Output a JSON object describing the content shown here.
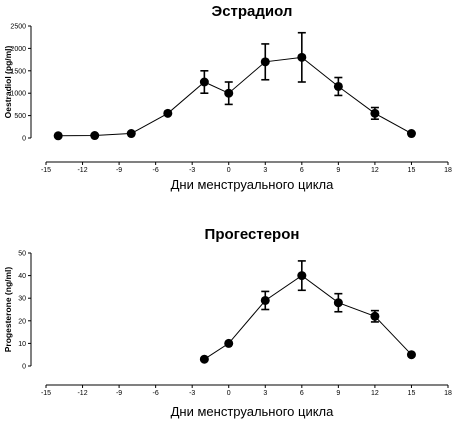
{
  "chart_data": [
    {
      "type": "line",
      "title": "Эстрадиол",
      "xlabel": "Дни менструального цикла",
      "ylabel": "Oestradiol (pg/ml)",
      "xlim": [
        -15,
        18
      ],
      "ylim": [
        0,
        2500
      ],
      "xticks": [
        -15,
        -12,
        -9,
        -6,
        -3,
        0,
        3,
        6,
        9,
        12,
        15,
        18
      ],
      "yticks": [
        0,
        500,
        1000,
        1500,
        2000,
        2500
      ],
      "grid": false,
      "series": [
        {
          "x": [
            -14,
            -11,
            -8,
            -5,
            -2,
            0,
            3,
            6,
            9,
            12,
            15
          ],
          "y": [
            50,
            55,
            100,
            550,
            1250,
            1000,
            1700,
            1800,
            1150,
            550,
            100
          ],
          "err": [
            0,
            0,
            0,
            0,
            250,
            250,
            400,
            550,
            200,
            130,
            0
          ]
        }
      ]
    },
    {
      "type": "line",
      "title": "Прогестерон",
      "xlabel": "Дни менструального цикла",
      "ylabel": "Progesterone  (ng/ml)",
      "xlim": [
        -15,
        18
      ],
      "ylim": [
        0,
        50
      ],
      "xticks": [
        -15,
        -12,
        -9,
        -6,
        -3,
        0,
        3,
        6,
        9,
        12,
        15,
        18
      ],
      "yticks": [
        0,
        10,
        20,
        30,
        40,
        50
      ],
      "grid": false,
      "series": [
        {
          "x": [
            -2,
            0,
            3,
            6,
            9,
            12,
            15
          ],
          "y": [
            3,
            10,
            29,
            40,
            28,
            22,
            5
          ],
          "err": [
            0,
            0,
            4,
            6.5,
            4,
            2.5,
            0
          ]
        }
      ]
    }
  ]
}
